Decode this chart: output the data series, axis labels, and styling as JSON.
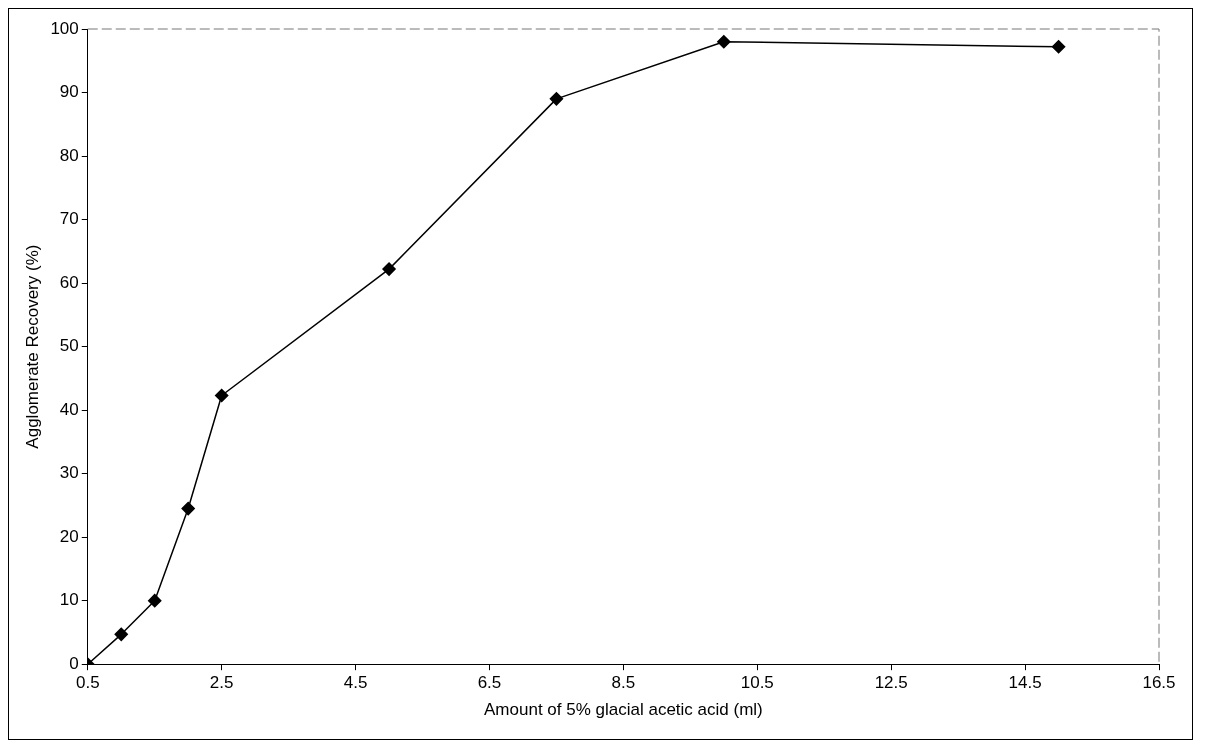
{
  "chart_data": {
    "type": "line",
    "xlabel": "Amount of 5% glacial acetic acid (ml)",
    "ylabel": "Agglomerate Recovery (%)",
    "x": [
      0.5,
      1,
      1.5,
      2,
      2.5,
      5,
      7.5,
      10,
      15
    ],
    "series": [
      {
        "color": "#000000",
        "values": [
          0,
          4.7,
          10,
          24.5,
          42.3,
          62.2,
          89,
          98,
          97.2
        ]
      }
    ],
    "xlim": [
      0.5,
      16.5
    ],
    "xticks": [
      0.5,
      2.5,
      4.5,
      6.5,
      8.5,
      10.5,
      12.5,
      14.5,
      16.5
    ],
    "ylim": [
      0,
      100
    ],
    "yticks": [
      0,
      10,
      20,
      30,
      40,
      50,
      60,
      70,
      80,
      90,
      100
    ],
    "grid": false,
    "legend": false,
    "marker": "diamond",
    "line_style": "solid"
  }
}
